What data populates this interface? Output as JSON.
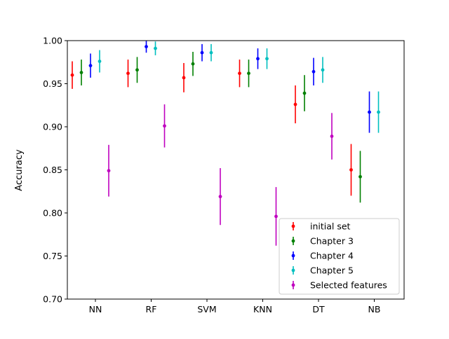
{
  "chart_data": {
    "type": "errorbar",
    "title": "",
    "xlabel": "",
    "ylabel": "Accuracy",
    "ylim": [
      0.7,
      1.0
    ],
    "yticks": [
      "0.70",
      "0.75",
      "0.80",
      "0.85",
      "0.90",
      "0.95",
      "1.00"
    ],
    "grid": false,
    "legend_position": "lower-right",
    "categories": [
      "NN",
      "RF",
      "SVM",
      "KNN",
      "DT",
      "NB"
    ],
    "series": [
      {
        "name": "initial set",
        "color": "#ff0000",
        "values": [
          0.96,
          0.962,
          0.957,
          0.962,
          0.926,
          0.85
        ],
        "errors": [
          0.016,
          0.016,
          0.017,
          0.016,
          0.022,
          0.03
        ]
      },
      {
        "name": "Chapter 3",
        "color": "#008000",
        "values": [
          0.963,
          0.966,
          0.973,
          0.962,
          0.939,
          0.842
        ],
        "errors": [
          0.015,
          0.015,
          0.014,
          0.016,
          0.021,
          0.03
        ]
      },
      {
        "name": "Chapter 4",
        "color": "#0000ff",
        "values": [
          0.971,
          0.993,
          0.986,
          0.979,
          0.964,
          0.917
        ],
        "errors": [
          0.014,
          0.007,
          0.01,
          0.012,
          0.016,
          0.024
        ]
      },
      {
        "name": "Chapter 5",
        "color": "#00bfbf",
        "values": [
          0.976,
          0.991,
          0.986,
          0.979,
          0.966,
          0.917
        ],
        "errors": [
          0.013,
          0.008,
          0.01,
          0.012,
          0.015,
          0.024
        ]
      },
      {
        "name": "Selected features",
        "color": "#bf00bf",
        "values": [
          0.849,
          0.901,
          0.819,
          0.796,
          0.889,
          null
        ],
        "errors": [
          0.03,
          0.025,
          0.033,
          0.034,
          0.027,
          null
        ]
      }
    ]
  }
}
